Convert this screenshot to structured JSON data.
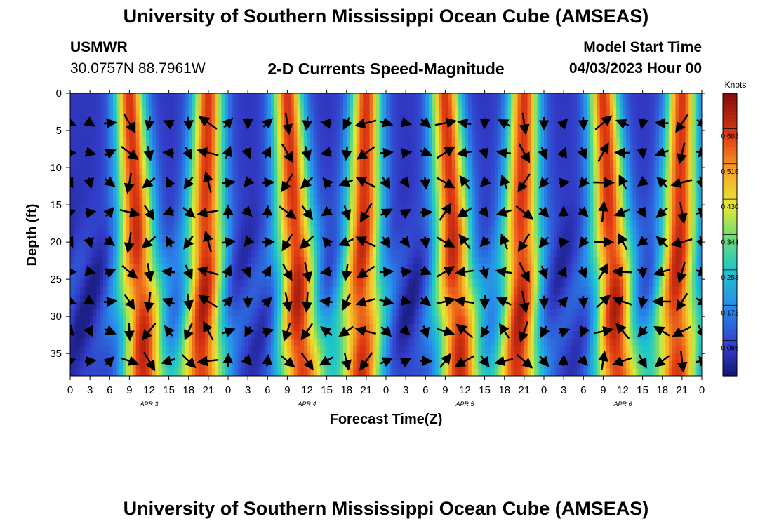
{
  "page": {
    "title": "University of Southern Mississippi Ocean Cube (AMSEAS)",
    "title_repeat": "University of Southern Mississippi Ocean Cube (AMSEAS)",
    "station": "USMWR",
    "coords": "30.0757N  88.7961W",
    "subtitle": "2-D Currents Speed-Magnitude",
    "model_start_label": "Model Start Time",
    "model_start_value": "04/03/2023 Hour 00"
  },
  "chart_data": {
    "type": "heatmap",
    "xlabel": "Forecast Time(Z)",
    "ylabel": "Depth (ft)",
    "x_tick_labels": [
      "0",
      "3",
      "6",
      "9",
      "12",
      "15",
      "18",
      "21",
      "0",
      "3",
      "6",
      "9",
      "12",
      "15",
      "18",
      "21",
      "0",
      "3",
      "6",
      "9",
      "12",
      "15",
      "18",
      "21",
      "0",
      "3",
      "6",
      "9",
      "12",
      "15",
      "18",
      "21",
      "0"
    ],
    "x_range_hours": [
      0,
      96
    ],
    "y_tick_labels": [
      "0",
      "5",
      "10",
      "15",
      "20",
      "25",
      "30",
      "35"
    ],
    "y_range_ft": [
      0,
      38
    ],
    "date_labels": [
      {
        "text": "APR 3",
        "hour": 12
      },
      {
        "text": "APR 4",
        "hour": 36
      },
      {
        "text": "APR 5",
        "hour": 60
      },
      {
        "text": "APR 6",
        "hour": 84
      }
    ],
    "colorbar": {
      "unit": "Knots",
      "tick_labels": [
        "0.602",
        "0.516",
        "0.430",
        "0.344",
        "0.258",
        "0.172",
        "0.086"
      ],
      "range": [
        0,
        0.688
      ]
    },
    "speed_peaks_hours": [
      9,
      21,
      33,
      45,
      57,
      69,
      81,
      93
    ],
    "peak_speed_knots": 0.6,
    "trough_speed_knots": 0.06,
    "arrow_columns_hours": [
      0,
      3,
      6,
      9,
      12,
      15,
      18,
      21,
      24,
      27,
      30,
      33,
      36,
      39,
      42,
      45,
      48,
      51,
      54,
      57,
      60,
      63,
      66,
      69,
      72,
      75,
      78,
      81,
      84,
      87,
      90,
      93,
      96
    ],
    "arrow_depths_ft": [
      4,
      8,
      12,
      16,
      20,
      24,
      28,
      32,
      36
    ]
  }
}
